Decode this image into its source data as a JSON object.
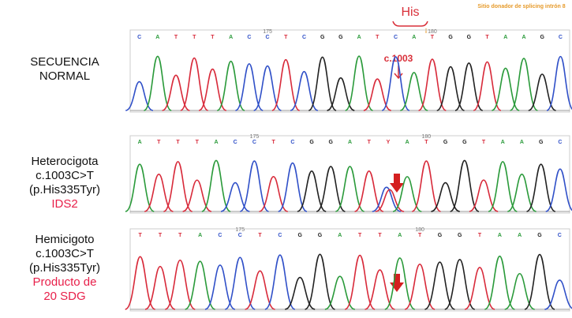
{
  "annotations": {
    "his": "His",
    "splice_site": "Sitio donador de splicing intrón 8",
    "mutation": "c.1003"
  },
  "tracks": [
    {
      "label_lines": [
        "SECUENCIA",
        "NORMAL"
      ],
      "highlight_lines": [],
      "bases": [
        "C",
        "A",
        "T",
        "T",
        "T",
        "A",
        "C",
        "C",
        "T",
        "C",
        "G",
        "G",
        "A",
        "T",
        "C",
        "A",
        "T",
        "G",
        "G",
        "T",
        "A",
        "A",
        "G",
        "C"
      ],
      "position_marks": [
        "175",
        "180"
      ]
    },
    {
      "label_lines": [
        "Heterocigota",
        "c.1003C>T",
        "(p.His335Tyr)"
      ],
      "highlight_lines": [
        "IDS2"
      ],
      "bases": [
        "A",
        "T",
        "T",
        "T",
        "A",
        "C",
        "C",
        "T",
        "C",
        "G",
        "G",
        "A",
        "T",
        "Y",
        "A",
        "T",
        "G",
        "G",
        "T",
        "A",
        "A",
        "G",
        "C"
      ],
      "position_marks": [
        "175",
        "180"
      ]
    },
    {
      "label_lines": [
        "Hemicigoto",
        "c.1003C>T",
        "(p.His335Tyr)"
      ],
      "highlight_lines": [
        "Producto de",
        "20 SDG"
      ],
      "bases": [
        "T",
        "T",
        "T",
        "A",
        "C",
        "C",
        "T",
        "C",
        "G",
        "G",
        "A",
        "T",
        "T",
        "A",
        "T",
        "G",
        "G",
        "T",
        "A",
        "A",
        "G",
        "C"
      ],
      "position_marks": [
        "175",
        "180"
      ]
    }
  ]
}
